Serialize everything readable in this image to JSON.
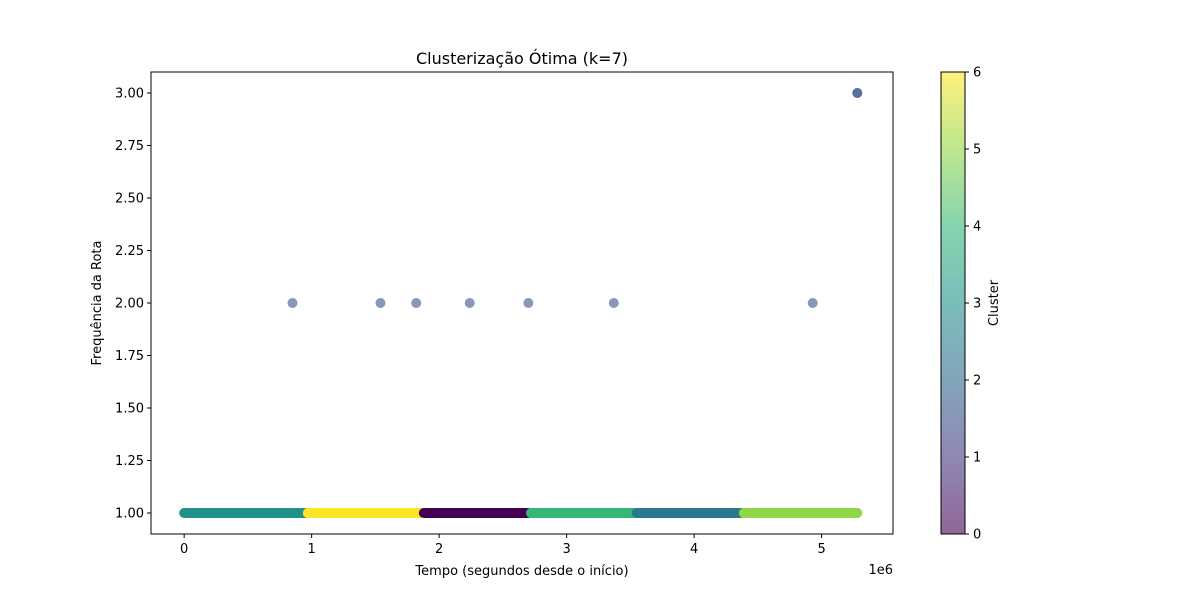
{
  "chart_data": {
    "type": "scatter",
    "title": "Clusterização Ótima (k=7)",
    "xlabel": "Tempo (segundos desde o início)",
    "ylabel": "Frequência da Rota",
    "x_offset_label": "1e6",
    "xlim": [
      -0.26,
      5.56
    ],
    "ylim": [
      0.9,
      3.1
    ],
    "x_multiplier": 1000000,
    "x_ticks": [
      0,
      1,
      2,
      3,
      4,
      5
    ],
    "x_tick_labels": [
      "0",
      "1",
      "2",
      "3",
      "4",
      "5"
    ],
    "y_ticks": [
      1.0,
      1.25,
      1.5,
      1.75,
      2.0,
      2.25,
      2.5,
      2.75,
      3.0
    ],
    "y_tick_labels": [
      "1.00",
      "1.25",
      "1.50",
      "1.75",
      "2.00",
      "2.25",
      "2.50",
      "2.75",
      "3.00"
    ],
    "grid": false,
    "marker_alpha": 0.6,
    "colorbar": {
      "label": "Cluster",
      "colormap": "viridis",
      "range": [
        0,
        6
      ],
      "ticks": [
        0,
        1,
        2,
        3,
        4,
        5,
        6
      ],
      "tick_labels": [
        "0",
        "1",
        "2",
        "3",
        "4",
        "5",
        "6"
      ]
    },
    "series": [
      {
        "cluster": 2,
        "color": "#21918c",
        "y": 1.0,
        "x_range": [
          0.0,
          0.95
        ]
      },
      {
        "cluster": 6,
        "color": "#fde725",
        "y": 1.0,
        "x_range": [
          0.97,
          1.86
        ]
      },
      {
        "cluster": 0,
        "color": "#440154",
        "y": 1.0,
        "x_range": [
          1.88,
          2.7
        ]
      },
      {
        "cluster": 4,
        "color": "#35b779",
        "y": 1.0,
        "x_range": [
          2.72,
          3.53
        ]
      },
      {
        "cluster": 3,
        "color": "#2a788e",
        "y": 1.0,
        "x_range": [
          3.55,
          4.37
        ]
      },
      {
        "cluster": 5,
        "color": "#8fd744",
        "y": 1.0,
        "x_range": [
          4.39,
          5.28
        ]
      },
      {
        "cluster": 1,
        "color": "#3b528b",
        "points": [
          {
            "x": 0.85,
            "y": 2.0
          },
          {
            "x": 1.54,
            "y": 2.0
          },
          {
            "x": 1.82,
            "y": 2.0
          },
          {
            "x": 2.24,
            "y": 2.0
          },
          {
            "x": 2.7,
            "y": 2.0
          },
          {
            "x": 3.37,
            "y": 2.0
          },
          {
            "x": 4.93,
            "y": 2.0
          },
          {
            "x": 5.28,
            "y": 3.0
          },
          {
            "x": 5.28,
            "y": 3.0
          }
        ]
      }
    ]
  }
}
